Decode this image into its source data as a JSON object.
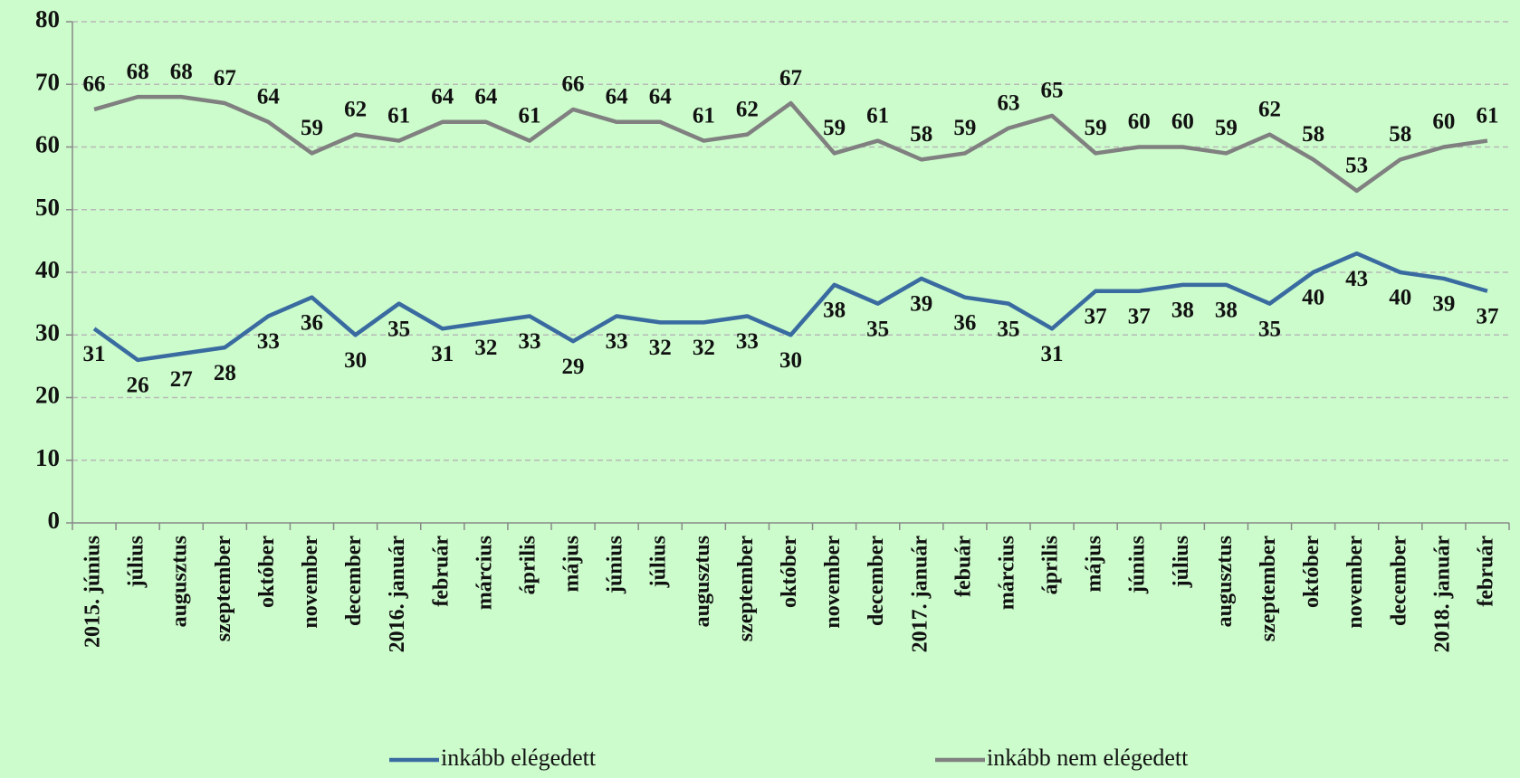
{
  "chart_data": {
    "type": "line",
    "categories": [
      "2015. június",
      "július",
      "augusztus",
      "szeptember",
      "október",
      "november",
      "december",
      "2016. január",
      "február",
      "március",
      "április",
      "május",
      "június",
      "július",
      "augusztus",
      "szeptember",
      "október",
      "november",
      "december",
      "2017. január",
      "febuár",
      "március",
      "április",
      "május",
      "június",
      "július",
      "augusztus",
      "szeptember",
      "október",
      "november",
      "december",
      "2018. január",
      "február"
    ],
    "series": [
      {
        "name": "inkább elégedett",
        "color": "#3a6ba0",
        "values": [
          31,
          26,
          27,
          28,
          33,
          36,
          30,
          35,
          31,
          32,
          33,
          29,
          33,
          32,
          32,
          33,
          30,
          38,
          35,
          39,
          36,
          35,
          31,
          37,
          37,
          38,
          38,
          35,
          40,
          43,
          40,
          39,
          37
        ]
      },
      {
        "name": "inkább nem elégedett",
        "color": "#808080",
        "values": [
          66,
          68,
          68,
          67,
          64,
          59,
          62,
          61,
          64,
          64,
          61,
          66,
          64,
          64,
          61,
          62,
          67,
          59,
          61,
          58,
          59,
          63,
          65,
          59,
          60,
          60,
          59,
          62,
          58,
          53,
          58,
          60,
          61
        ]
      }
    ],
    "ylim": [
      0,
      80
    ],
    "yticks": [
      0,
      10,
      20,
      30,
      40,
      50,
      60,
      70,
      80
    ],
    "grid": true,
    "legend": "bottom"
  }
}
